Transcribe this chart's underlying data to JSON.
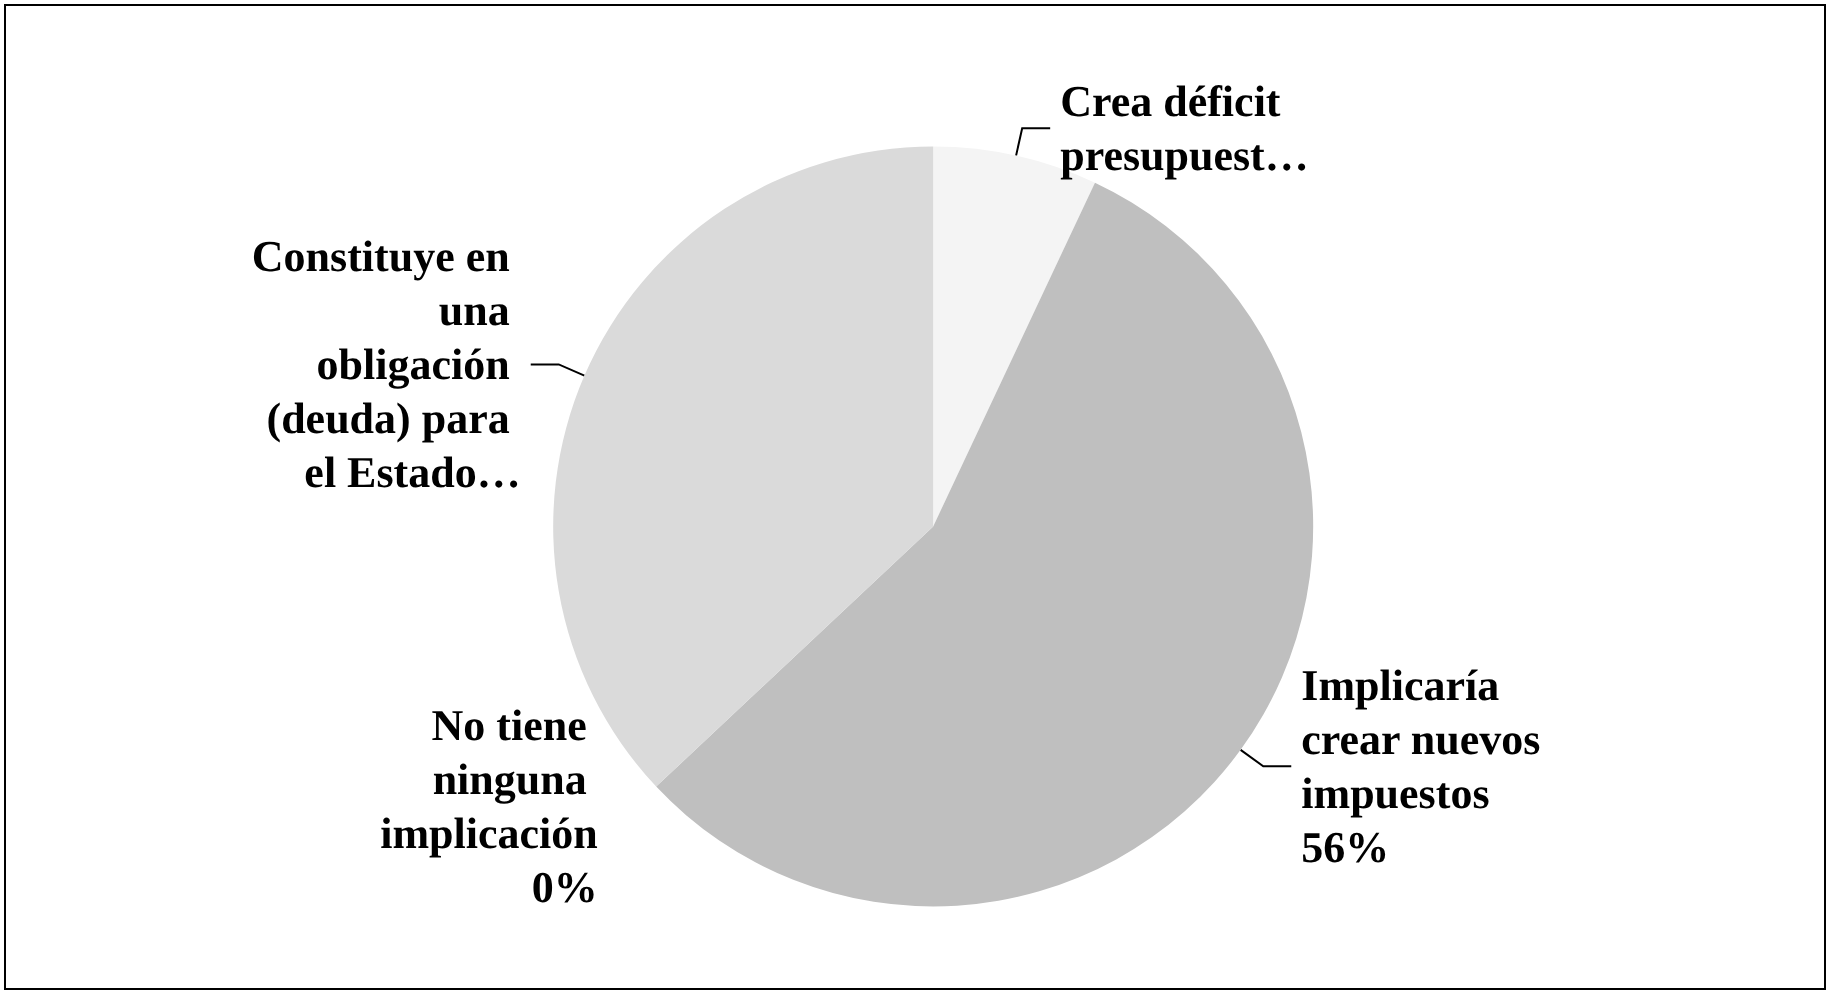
{
  "chart_data": {
    "type": "pie",
    "categories": [
      "Crea déficit presupuest…",
      "Implicaría crear nuevos impuestos",
      "No tiene ninguna implicación",
      "Constituye en una obligación (deuda) para el Estado…"
    ],
    "values": [
      7,
      56,
      0,
      37
    ],
    "value_labels": [
      null,
      "56%",
      "0%",
      null
    ],
    "colors": [
      "#f4f4f4",
      "#bfbfbf",
      "#9e9e9e",
      "#dadada"
    ],
    "legend": false
  }
}
